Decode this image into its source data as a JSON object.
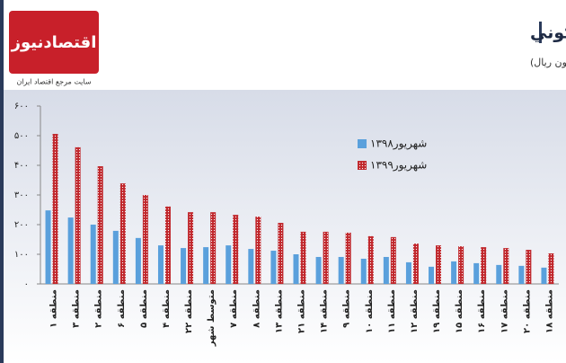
{
  "logo": {
    "name": "اقتصادنیوز",
    "tagline": "سایت مرجع اقتصاد ایران"
  },
  "chart_data": {
    "type": "bar",
    "title": "متوسط قيمت يک متر مربع زيربناي واحد مسکوني",
    "subtitle": "(واحد: میلیون ریال)",
    "categories": [
      "منطقه ۱",
      "منطقه ۳",
      "منطقه ۲",
      "منطقه ۶",
      "منطقه ۵",
      "منطقه ۴",
      "منطقه ۲۲",
      "متوسط شهر",
      "منطقه ۷",
      "منطقه ۸",
      "منطقه ۱۳",
      "منطقه ۲۱",
      "منطقه ۱۴",
      "منطقه ۹",
      "منطقه ۱۰",
      "منطقه ۱۱",
      "منطقه ۱۲",
      "منطقه ۱۹",
      "منطقه ۱۵",
      "منطقه ۱۶",
      "منطقه ۱۷",
      "منطقه ۲۰",
      "منطقه ۱۸"
    ],
    "series": [
      {
        "name": "شهریور۱۳۹۸",
        "color": "#5aa0dc",
        "values": [
          248,
          224,
          200,
          179,
          155,
          130,
          121,
          124,
          130,
          118,
          112,
          100,
          91,
          91,
          85,
          91,
          73,
          58,
          76,
          70,
          64,
          61,
          55
        ]
      },
      {
        "name": "شهریور۱۳۹۹",
        "color": "#c0282d",
        "values": [
          506,
          461,
          397,
          339,
          300,
          261,
          242,
          242,
          233,
          227,
          206,
          176,
          176,
          173,
          161,
          158,
          136,
          130,
          127,
          124,
          121,
          115,
          103
        ]
      }
    ],
    "ylim": [
      0,
      600
    ],
    "yticks": [
      {
        "value": 0,
        "label": "۰"
      },
      {
        "value": 100,
        "label": "۱۰۰"
      },
      {
        "value": 200,
        "label": "۲۰۰"
      },
      {
        "value": 300,
        "label": "۳۰۰"
      },
      {
        "value": 400,
        "label": "۴۰۰"
      },
      {
        "value": 500,
        "label": "۵۰۰"
      },
      {
        "value": 600,
        "label": "۶۰۰"
      }
    ],
    "grid": false,
    "legend": "top-right"
  }
}
